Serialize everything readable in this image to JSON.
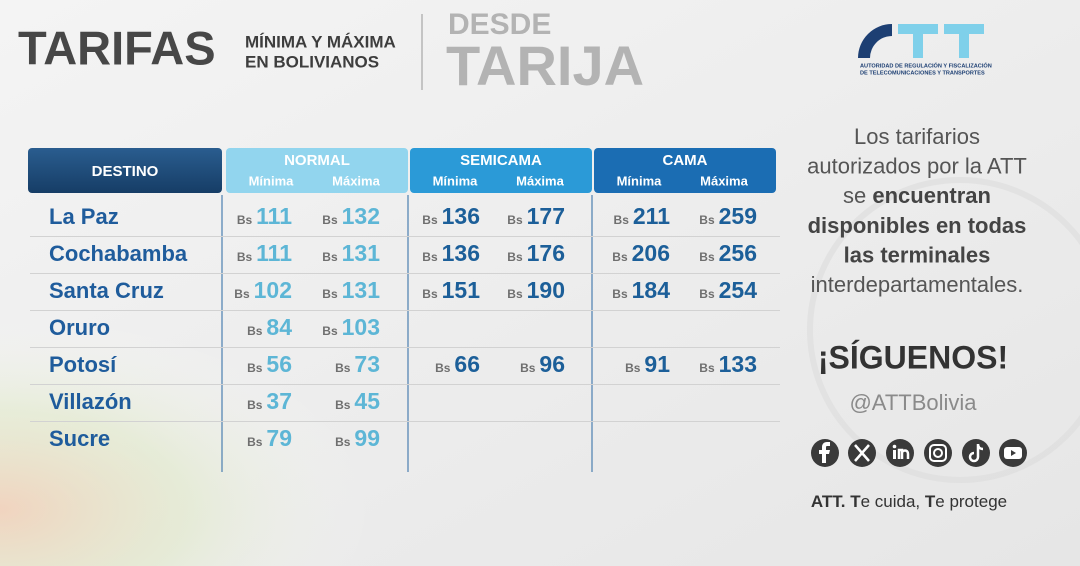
{
  "header": {
    "title": "TARIFAS",
    "subtitle_line1": "MÍNIMA Y MÁXIMA",
    "subtitle_line2": "EN BOLIVIANOS",
    "from_label": "DESDE",
    "city": "TARIJA"
  },
  "logo": {
    "caption_line1": "AUTORIDAD DE REGULACIÓN Y FISCALIZACIÓN",
    "caption_line2": "DE TELECOMUNICACIONES Y TRANSPORTES"
  },
  "table": {
    "destination_header": "DESTINO",
    "currency": "Bs",
    "groups": [
      {
        "name": "NORMAL",
        "min_label": "Mínima",
        "max_label": "Máxima"
      },
      {
        "name": "SEMICAMA",
        "min_label": "Mínima",
        "max_label": "Máxima"
      },
      {
        "name": "CAMA",
        "min_label": "Mínima",
        "max_label": "Máxima"
      }
    ],
    "rows": [
      {
        "destination": "La Paz",
        "fares": [
          [
            111,
            132
          ],
          [
            136,
            177
          ],
          [
            211,
            259
          ]
        ]
      },
      {
        "destination": "Cochabamba",
        "fares": [
          [
            111,
            131
          ],
          [
            136,
            176
          ],
          [
            206,
            256
          ]
        ]
      },
      {
        "destination": "Santa Cruz",
        "fares": [
          [
            102,
            131
          ],
          [
            151,
            190
          ],
          [
            184,
            254
          ]
        ]
      },
      {
        "destination": "Oruro",
        "fares": [
          [
            84,
            103
          ],
          null,
          null
        ]
      },
      {
        "destination": "Potosí",
        "fares": [
          [
            56,
            73
          ],
          [
            66,
            96
          ],
          [
            91,
            133
          ]
        ]
      },
      {
        "destination": "Villazón",
        "fares": [
          [
            37,
            45
          ],
          null,
          null
        ]
      },
      {
        "destination": "Sucre",
        "fares": [
          [
            79,
            99
          ],
          null,
          null
        ]
      }
    ]
  },
  "info": {
    "lines": [
      [
        {
          "text": "Los tarifarios",
          "bold": false
        }
      ],
      [
        {
          "text": "autorizados por la ATT",
          "bold": false
        }
      ],
      [
        {
          "text": "se ",
          "bold": false
        },
        {
          "text": "encuentran",
          "bold": true
        }
      ],
      [
        {
          "text": "disponibles en todas",
          "bold": true
        }
      ],
      [
        {
          "text": "las terminales",
          "bold": true
        }
      ],
      [
        {
          "text": "interdepartamentales.",
          "bold": false
        }
      ]
    ],
    "follow": "¡SÍGUENOS!",
    "handle": "@ATTBolivia",
    "tagline": [
      {
        "text": "ATT. T",
        "bold": true
      },
      {
        "text": "e cuida, ",
        "bold": false
      },
      {
        "text": "T",
        "bold": true
      },
      {
        "text": "e protege",
        "bold": false
      }
    ]
  }
}
